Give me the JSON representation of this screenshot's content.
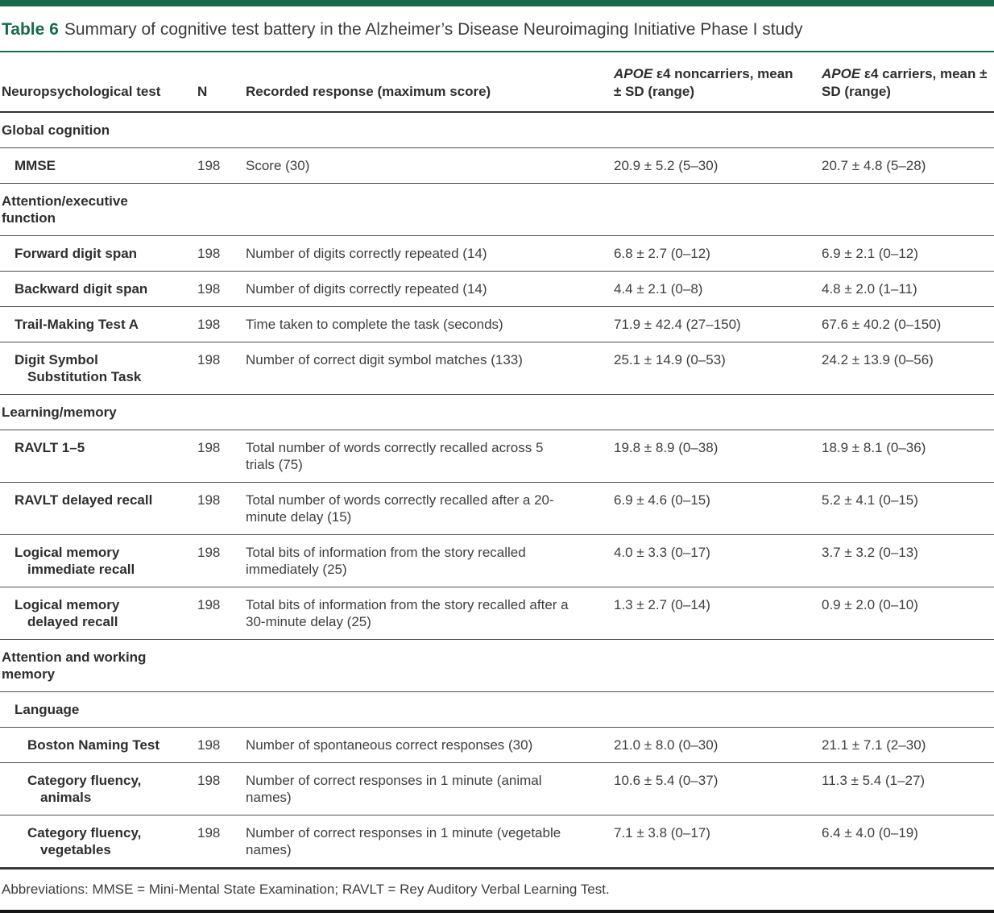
{
  "colors": {
    "accent_green": "#17694C",
    "body_text": "#3E3E3E",
    "bold_text": "#2E2E2E",
    "row_rule": "#4C4C4C",
    "heavy_rule": "#333333",
    "bottom_bar": "#161616"
  },
  "title": {
    "label": "Table 6",
    "text": "Summary of cognitive test battery in the Alzheimer’s Disease Neuroimaging Initiative Phase I study"
  },
  "columns": {
    "test": "Neuropsychological test",
    "n": "N",
    "response": "Recorded response (maximum score)",
    "noncarriers": {
      "gene": "APOE",
      "rest": " ε4 noncarriers, mean ± SD (range)"
    },
    "carriers": {
      "gene": "APOE",
      "rest": " ε4 carriers, mean ± SD (range)"
    }
  },
  "rows": [
    {
      "type": "section",
      "label": "Global cognition"
    },
    {
      "type": "test",
      "name": "MMSE",
      "n": "198",
      "response": "Score (30)",
      "noncarriers": "20.9 ± 5.2 (5–30)",
      "carriers": "20.7 ± 4.8 (5–28)"
    },
    {
      "type": "section",
      "label": "Attention/executive function"
    },
    {
      "type": "test",
      "name": "Forward digit span",
      "n": "198",
      "response": "Number of digits correctly repeated (14)",
      "noncarriers": "6.8 ± 2.7 (0–12)",
      "carriers": "6.9 ± 2.1 (0–12)"
    },
    {
      "type": "test",
      "name": "Backward digit span",
      "n": "198",
      "response": "Number of digits correctly repeated (14)",
      "noncarriers": "4.4 ± 2.1 (0–8)",
      "carriers": "4.8 ± 2.0 (1–11)"
    },
    {
      "type": "test",
      "name": "Trail-Making Test A",
      "n": "198",
      "response": "Time taken to complete the task (seconds)",
      "noncarriers": "71.9 ± 42.4 (27–150)",
      "carriers": "67.6 ± 40.2 (0–150)"
    },
    {
      "type": "test",
      "name": "Digit Symbol Substitution Task",
      "n": "198",
      "response": "Number of correct digit symbol matches (133)",
      "noncarriers": "25.1 ± 14.9 (0–53)",
      "carriers": "24.2 ± 13.9 (0–56)"
    },
    {
      "type": "section",
      "label": "Learning/memory"
    },
    {
      "type": "test",
      "name": "RAVLT 1–5",
      "n": "198",
      "response": "Total number of words correctly recalled across 5 trials (75)",
      "noncarriers": "19.8 ± 8.9 (0–38)",
      "carriers": "18.9 ± 8.1 (0–36)"
    },
    {
      "type": "test",
      "name": "RAVLT delayed recall",
      "n": "198",
      "response": "Total number of words correctly recalled after a 20-minute delay (15)",
      "noncarriers": "6.9 ± 4.6 (0–15)",
      "carriers": "5.2 ± 4.1 (0–15)"
    },
    {
      "type": "test",
      "name": "Logical memory immediate recall",
      "n": "198",
      "response": "Total bits of information from the story recalled immediately (25)",
      "noncarriers": "4.0 ± 3.3 (0–17)",
      "carriers": "3.7 ± 3.2 (0–13)"
    },
    {
      "type": "test",
      "name": "Logical memory delayed recall",
      "n": "198",
      "response": "Total bits of information from the story recalled after a 30-minute delay (25)",
      "noncarriers": "1.3 ± 2.7 (0–14)",
      "carriers": "0.9 ± 2.0 (0–10)"
    },
    {
      "type": "section",
      "label": "Attention and working memory"
    },
    {
      "type": "section-sub",
      "label": "Language"
    },
    {
      "type": "test2",
      "name": "Boston Naming Test",
      "n": "198",
      "response": "Number of spontaneous correct responses (30)",
      "noncarriers": "21.0 ± 8.0 (0–30)",
      "carriers": "21.1 ± 7.1 (2–30)"
    },
    {
      "type": "test2",
      "name": "Category fluency, animals",
      "n": "198",
      "response": "Number of correct responses in 1 minute (animal names)",
      "noncarriers": "10.6 ± 5.4 (0–37)",
      "carriers": "11.3 ± 5.4 (1–27)"
    },
    {
      "type": "test2",
      "name": "Category fluency, vegetables",
      "n": "198",
      "response": "Number of correct responses in 1 minute (vegetable names)",
      "noncarriers": "7.1 ± 3.8 (0–17)",
      "carriers": "6.4 ± 4.0 (0–19)"
    }
  ],
  "footer": {
    "abbreviations": "Abbreviations: MMSE = Mini-Mental State Examination; RAVLT = Rey Auditory Verbal Learning Test."
  }
}
